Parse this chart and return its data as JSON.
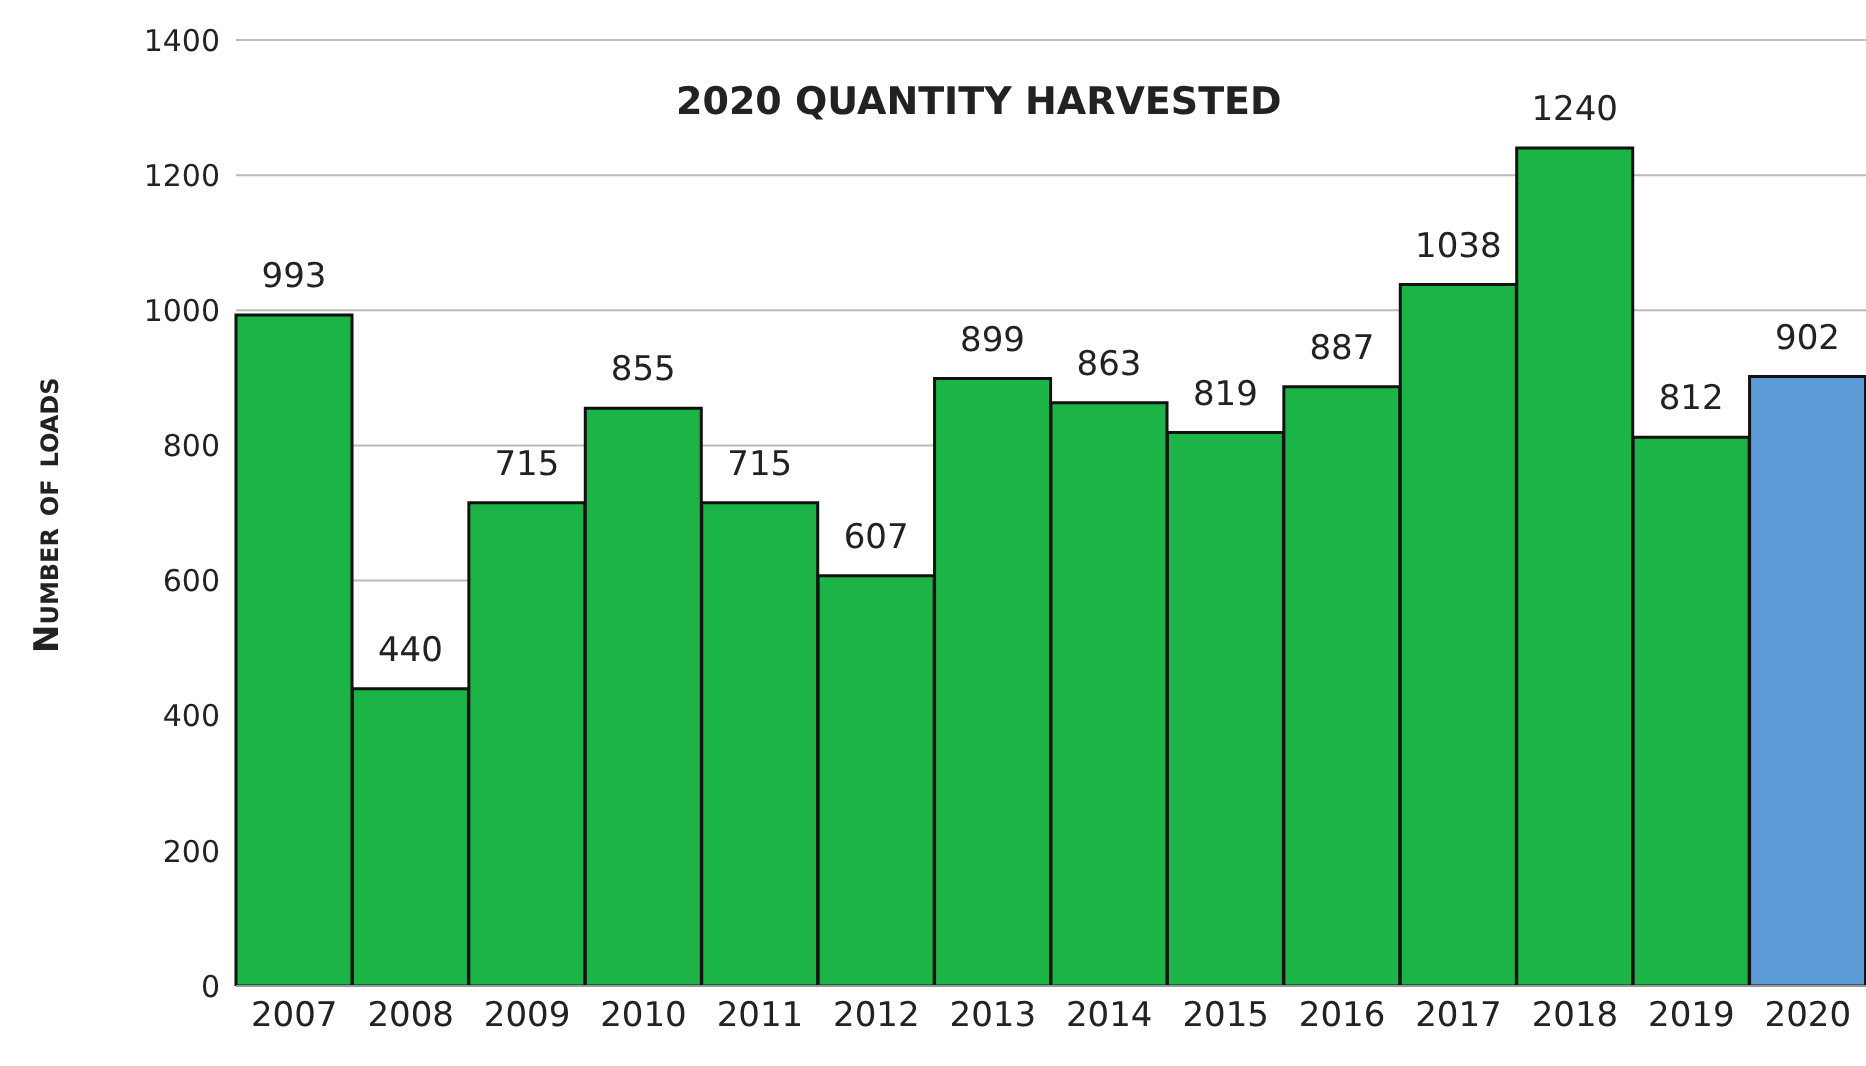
{
  "chart_data": {
    "type": "bar",
    "title": "2020 QUANTITY HARVESTED",
    "ylabel": "Number of loads",
    "categories": [
      "2007",
      "2008",
      "2009",
      "2010",
      "2011",
      "2012",
      "2013",
      "2014",
      "2015",
      "2016",
      "2017",
      "2018",
      "2019",
      "2020"
    ],
    "values": [
      993,
      440,
      715,
      855,
      715,
      607,
      899,
      863,
      819,
      887,
      1038,
      1240,
      812,
      902
    ],
    "colors": [
      "#1db447",
      "#1db447",
      "#1db447",
      "#1db447",
      "#1db447",
      "#1db447",
      "#1db447",
      "#1db447",
      "#1db447",
      "#1db447",
      "#1db447",
      "#1db447",
      "#1db447",
      "#5b9bd5"
    ],
    "ylim": [
      0,
      1400
    ],
    "yticks": [
      0,
      200,
      400,
      600,
      800,
      1000,
      1200,
      1400
    ],
    "grid": "y",
    "data_labels": true,
    "legend": false
  }
}
